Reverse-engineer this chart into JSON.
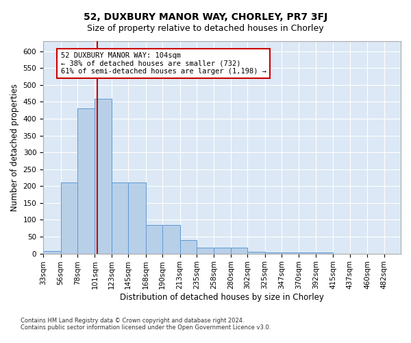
{
  "title": "52, DUXBURY MANOR WAY, CHORLEY, PR7 3FJ",
  "subtitle": "Size of property relative to detached houses in Chorley",
  "xlabel": "Distribution of detached houses by size in Chorley",
  "ylabel": "Number of detached properties",
  "footnote1": "Contains HM Land Registry data © Crown copyright and database right 2024.",
  "footnote2": "Contains public sector information licensed under the Open Government Licence v3.0.",
  "bin_edges": [
    33,
    56,
    78,
    101,
    123,
    145,
    168,
    190,
    213,
    235,
    258,
    280,
    302,
    325,
    347,
    370,
    392,
    415,
    437,
    460,
    482
  ],
  "bar_heights": [
    8,
    210,
    430,
    460,
    210,
    210,
    85,
    85,
    40,
    18,
    18,
    18,
    5,
    3,
    3,
    3,
    3,
    0,
    0,
    0
  ],
  "bar_color": "#b8cfe8",
  "bar_edge_color": "#5b9bd5",
  "background_color": "#dce8f5",
  "red_line_x": 104,
  "red_line_color": "#cc0000",
  "annotation_text": "52 DUXBURY MANOR WAY: 104sqm\n← 38% of detached houses are smaller (732)\n61% of semi-detached houses are larger (1,198) →",
  "annotation_box_color": "#cc0000",
  "ylim": [
    0,
    630
  ],
  "yticks": [
    0,
    50,
    100,
    150,
    200,
    250,
    300,
    350,
    400,
    450,
    500,
    550,
    600
  ],
  "title_fontsize": 10,
  "subtitle_fontsize": 9,
  "xlabel_fontsize": 8.5,
  "ylabel_fontsize": 8.5,
  "tick_fontsize": 7.5,
  "annot_fontsize": 7.5,
  "footnote_fontsize": 6
}
